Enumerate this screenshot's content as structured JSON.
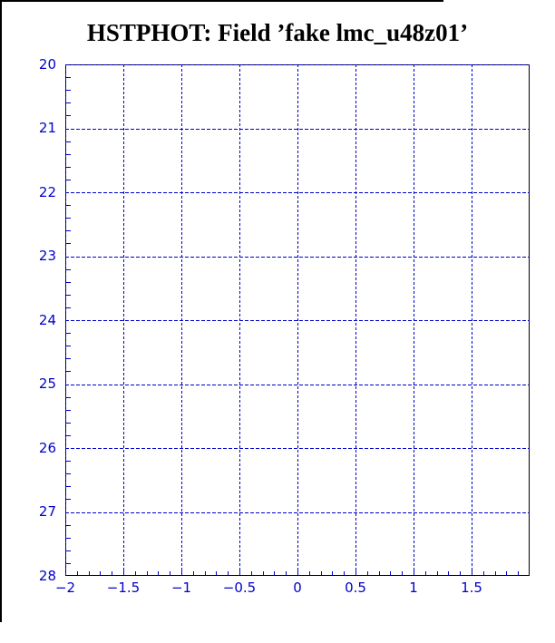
{
  "window": {
    "background": "#ffffff",
    "frame_color": "#000000"
  },
  "title": "HSTPHOT: Field ’fake lmc_u48z01’",
  "chart_data": {
    "type": "scatter",
    "title": "HSTPHOT: Field ’fake lmc_u48z01’",
    "description": "Empty plot frame (no data points drawn) with dashed blue grid",
    "xlabel": "",
    "ylabel": "",
    "xlim": [
      -2,
      2
    ],
    "ylim": [
      28,
      20
    ],
    "y_axis_inverted": true,
    "x_ticks": [
      -2,
      -1.5,
      -1,
      -0.5,
      0,
      0.5,
      1,
      1.5
    ],
    "x_tick_labels": [
      "−2",
      "−1.5",
      "−1",
      "−0.5",
      "0",
      "0.5",
      "1",
      "1.5"
    ],
    "y_ticks": [
      20,
      21,
      22,
      23,
      24,
      25,
      26,
      27,
      28
    ],
    "y_tick_labels": [
      "20",
      "21",
      "22",
      "23",
      "24",
      "25",
      "26",
      "27",
      "28"
    ],
    "x_minor_step": 0.1,
    "y_minor_step": 0.2,
    "grid": true,
    "grid_color": "#0000cc",
    "grid_style": "dashed",
    "tick_color": "#0000cc",
    "tick_label_color": "#0000cc",
    "border_color": "#000000",
    "series": [],
    "points": []
  }
}
